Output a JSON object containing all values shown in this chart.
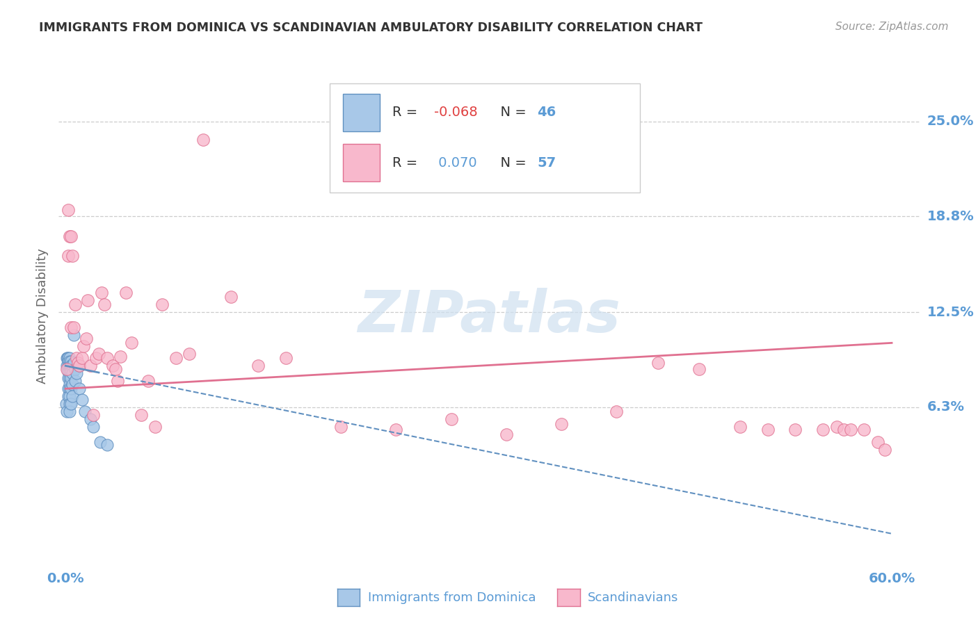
{
  "title": "IMMIGRANTS FROM DOMINICA VS SCANDINAVIAN AMBULATORY DISABILITY CORRELATION CHART",
  "source": "Source: ZipAtlas.com",
  "ylabel": "Ambulatory Disability",
  "ytick_labels": [
    "6.3%",
    "12.5%",
    "18.8%",
    "25.0%"
  ],
  "ytick_values": [
    0.063,
    0.125,
    0.188,
    0.25
  ],
  "xtick_labels": [
    "0.0%",
    "60.0%"
  ],
  "xtick_values": [
    0.0,
    0.6
  ],
  "xlim": [
    -0.005,
    0.62
  ],
  "ylim": [
    -0.04,
    0.285
  ],
  "blue_color": "#a8c8e8",
  "blue_edge_color": "#6090c0",
  "pink_color": "#f8b8cc",
  "pink_edge_color": "#e07090",
  "blue_line_color": "#6090c0",
  "pink_line_color": "#e07090",
  "axis_color": "#5b9bd5",
  "title_color": "#333333",
  "source_color": "#999999",
  "grid_color": "#cccccc",
  "watermark_color": "#cfe0f0",
  "watermark": "ZIPatlas",
  "legend_label_1": "Immigrants from Dominica",
  "legend_label_2": "Scandinavians",
  "blue_x": [
    0.0005,
    0.001,
    0.001,
    0.001,
    0.0015,
    0.0015,
    0.002,
    0.002,
    0.002,
    0.002,
    0.002,
    0.002,
    0.002,
    0.003,
    0.003,
    0.003,
    0.003,
    0.003,
    0.003,
    0.003,
    0.003,
    0.003,
    0.003,
    0.004,
    0.004,
    0.004,
    0.004,
    0.004,
    0.004,
    0.005,
    0.005,
    0.005,
    0.005,
    0.006,
    0.006,
    0.007,
    0.007,
    0.008,
    0.01,
    0.01,
    0.012,
    0.014,
    0.018,
    0.02,
    0.025,
    0.03
  ],
  "blue_y": [
    0.065,
    0.095,
    0.09,
    0.06,
    0.095,
    0.088,
    0.095,
    0.093,
    0.09,
    0.086,
    0.082,
    0.075,
    0.07,
    0.095,
    0.093,
    0.09,
    0.086,
    0.082,
    0.078,
    0.075,
    0.07,
    0.065,
    0.06,
    0.093,
    0.09,
    0.086,
    0.082,
    0.075,
    0.065,
    0.09,
    0.085,
    0.078,
    0.07,
    0.11,
    0.092,
    0.088,
    0.08,
    0.085,
    0.09,
    0.075,
    0.068,
    0.06,
    0.055,
    0.05,
    0.04,
    0.038
  ],
  "pink_x": [
    0.001,
    0.002,
    0.002,
    0.003,
    0.004,
    0.004,
    0.005,
    0.006,
    0.007,
    0.008,
    0.009,
    0.01,
    0.012,
    0.013,
    0.015,
    0.016,
    0.018,
    0.02,
    0.022,
    0.024,
    0.026,
    0.028,
    0.03,
    0.034,
    0.036,
    0.038,
    0.04,
    0.044,
    0.048,
    0.055,
    0.06,
    0.065,
    0.07,
    0.08,
    0.09,
    0.1,
    0.12,
    0.14,
    0.16,
    0.2,
    0.24,
    0.28,
    0.32,
    0.36,
    0.4,
    0.43,
    0.46,
    0.49,
    0.51,
    0.53,
    0.55,
    0.56,
    0.565,
    0.57,
    0.58,
    0.59,
    0.595
  ],
  "pink_y": [
    0.088,
    0.192,
    0.162,
    0.175,
    0.175,
    0.115,
    0.162,
    0.115,
    0.13,
    0.095,
    0.092,
    0.09,
    0.095,
    0.103,
    0.108,
    0.133,
    0.09,
    0.058,
    0.095,
    0.098,
    0.138,
    0.13,
    0.095,
    0.09,
    0.088,
    0.08,
    0.096,
    0.138,
    0.105,
    0.058,
    0.08,
    0.05,
    0.13,
    0.095,
    0.098,
    0.238,
    0.135,
    0.09,
    0.095,
    0.05,
    0.048,
    0.055,
    0.045,
    0.052,
    0.06,
    0.092,
    0.088,
    0.05,
    0.048,
    0.048,
    0.048,
    0.05,
    0.048,
    0.048,
    0.048,
    0.04,
    0.035
  ],
  "blue_trend_x": [
    0.0,
    0.6
  ],
  "blue_trend_y": [
    0.09,
    -0.02
  ],
  "pink_trend_x": [
    0.0,
    0.6
  ],
  "pink_trend_y": [
    0.075,
    0.105
  ]
}
